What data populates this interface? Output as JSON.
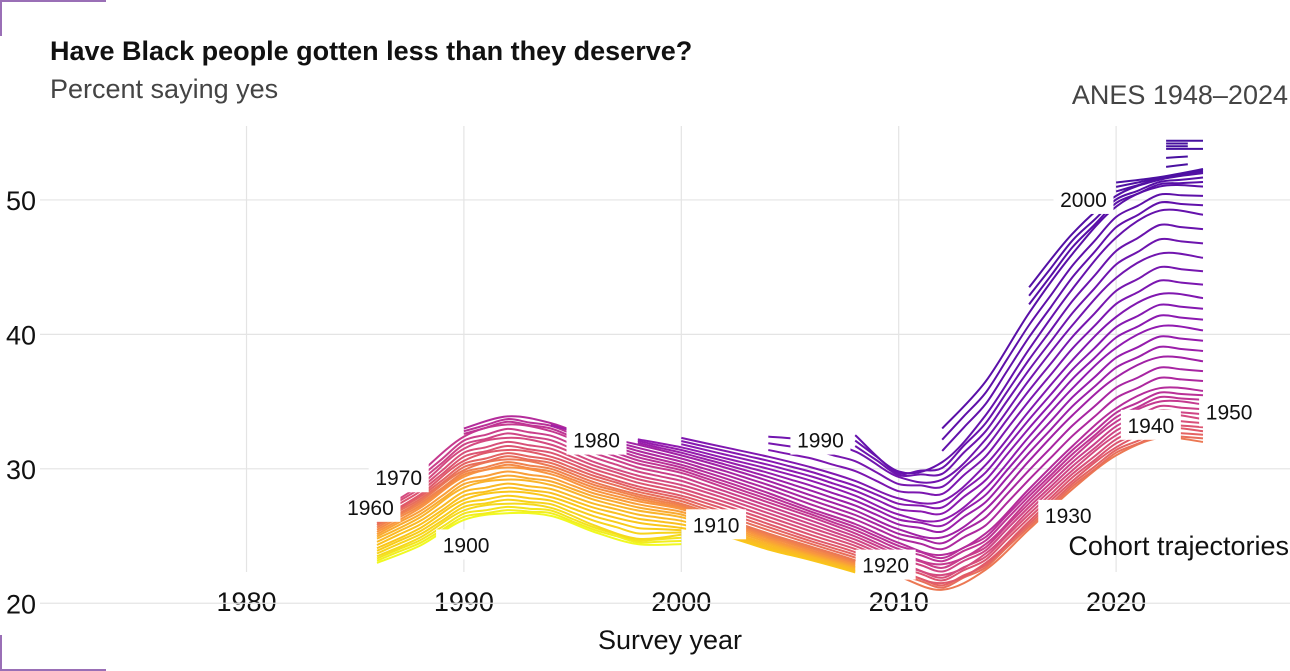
{
  "title": "Have Black people gotten less than they deserve?",
  "subtitle": "Percent saying yes",
  "source": "ANES 1948–2024",
  "chart_data": {
    "type": "line",
    "xlabel": "Survey year",
    "ylabel": "",
    "xlim": [
      1970.5,
      2028
    ],
    "ylim": [
      19.5,
      55.5
    ],
    "x_ticks": [
      1980,
      1990,
      2000,
      2010,
      2020
    ],
    "y_ticks": [
      20,
      30,
      40,
      50
    ],
    "grid": true,
    "legend_title": "Cohort trajectories",
    "cohort_labels": [
      {
        "label": "1900",
        "x": 1990.1,
        "y": 24.3
      },
      {
        "label": "1910",
        "x": 2001.6,
        "y": 25.8
      },
      {
        "label": "1920",
        "x": 2009.4,
        "y": 22.8
      },
      {
        "label": "1930",
        "x": 2017.8,
        "y": 26.5
      },
      {
        "label": "1940",
        "x": 2021.6,
        "y": 33.2
      },
      {
        "label": "1950",
        "x": 2025.2,
        "y": 34.2
      },
      {
        "label": "1960",
        "x": 1985.7,
        "y": 27.1
      },
      {
        "label": "1970",
        "x": 1987.0,
        "y": 29.3
      },
      {
        "label": "1980",
        "x": 1996.1,
        "y": 32.1
      },
      {
        "label": "1990",
        "x": 2006.4,
        "y": 32.1
      },
      {
        "label": "2000",
        "x": 2018.5,
        "y": 50.0
      }
    ],
    "series": [
      {
        "color": "#f0f921",
        "x": [
          1986.0,
          1988.0,
          1990.0,
          1992.0,
          1994.0,
          1996.0,
          1998.0,
          2000.0
        ],
        "y": [
          23.0,
          24.3,
          26.2,
          26.7,
          26.5,
          25.3,
          24.4,
          24.4
        ]
      },
      {
        "color": "#f5d91d",
        "x": [
          1986.0,
          1988.0,
          1990.0,
          1992.0,
          1994.0,
          1996.0,
          1998.0,
          2000.0
        ],
        "y": [
          23.5,
          24.9,
          26.9,
          27.4,
          27.1,
          25.8,
          24.8,
          25.1
        ]
      },
      {
        "color": "#fac61a",
        "x": [
          1986.0,
          1988.0,
          1990.0,
          1992.0,
          1994.0,
          1996.0,
          1998.0,
          2000.0,
          2002.0,
          2004.0,
          2006.0,
          2008.0
        ],
        "y": [
          24.1,
          25.6,
          27.7,
          28.3,
          27.9,
          26.8,
          26.0,
          25.6,
          25.0,
          24.0,
          23.2,
          22.3
        ]
      },
      {
        "color": "#fab42a",
        "x": [
          1986.0,
          1988.0,
          1990.0,
          1992.0,
          1994.0,
          1996.0,
          1998.0,
          2000.0,
          2002.0,
          2004.0,
          2006.0,
          2008.0
        ],
        "y": [
          24.8,
          26.4,
          28.6,
          29.2,
          28.8,
          27.7,
          26.9,
          26.4,
          25.4,
          24.4,
          23.5,
          22.6
        ]
      },
      {
        "color": "#f89540",
        "x": [
          1986.0,
          1988.0,
          1990.0,
          1992.0,
          1994.0,
          1996.0,
          1998.0,
          2000.0,
          2002.0,
          2004.0,
          2006.0,
          2008.0
        ],
        "y": [
          25.3,
          27.1,
          29.4,
          30.1,
          29.6,
          28.4,
          27.6,
          27.0,
          25.9,
          24.8,
          23.8,
          22.9
        ]
      },
      {
        "color": "#ec7853",
        "x": [
          1986.0,
          1988.0,
          1990.0,
          1992.0,
          1994.0,
          1996.0,
          1998.0,
          2000.0,
          2002.0,
          2004.0,
          2006.0,
          2008.0,
          2010.0,
          2012.0,
          2014.0,
          2016.0,
          2018.0,
          2020.0,
          2022.0,
          2024.0
        ],
        "y": [
          25.8,
          27.6,
          29.9,
          30.7,
          30.2,
          29.0,
          28.1,
          27.4,
          26.3,
          25.2,
          24.2,
          23.2,
          22.0,
          21.0,
          22.5,
          25.5,
          28.5,
          31.0,
          32.3,
          32.0
        ]
      },
      {
        "color": "#e0596a",
        "x": [
          1986.0,
          1988.0,
          1990.0,
          1992.0,
          1994.0,
          1996.0,
          1998.0,
          2000.0,
          2002.0,
          2004.0,
          2006.0,
          2008.0,
          2010.0,
          2012.0,
          2014.0,
          2016.0,
          2018.0,
          2020.0,
          2022.0,
          2024.0
        ],
        "y": [
          26.2,
          28.1,
          30.6,
          31.4,
          30.9,
          29.7,
          28.7,
          28.0,
          27.0,
          25.9,
          24.8,
          23.8,
          22.5,
          21.5,
          23.0,
          26.1,
          29.1,
          31.6,
          33.0,
          32.8
        ]
      },
      {
        "color": "#d44a80",
        "x": [
          1986.0,
          1988.0,
          1990.0,
          1992.0,
          1994.0,
          1996.0,
          1998.0,
          2000.0,
          2002.0,
          2004.0,
          2006.0,
          2008.0,
          2010.0,
          2012.0,
          2014.0,
          2016.0,
          2018.0,
          2020.0,
          2022.0,
          2024.0
        ],
        "y": [
          26.8,
          28.8,
          31.5,
          32.3,
          31.8,
          30.5,
          29.5,
          28.8,
          27.8,
          26.7,
          25.6,
          24.5,
          23.1,
          22.1,
          23.7,
          26.9,
          29.9,
          32.5,
          34.0,
          33.7
        ]
      },
      {
        "color": "#c53a8f",
        "x": [
          1988.0,
          1990.0,
          1992.0,
          1994.0,
          1996.0,
          1998.0,
          2000.0,
          2002.0,
          2004.0,
          2006.0,
          2008.0,
          2010.0,
          2012.0,
          2014.0,
          2016.0,
          2018.0,
          2020.0,
          2022.0,
          2024.0
        ],
        "y": [
          29.7,
          32.4,
          33.3,
          32.8,
          31.5,
          30.4,
          29.7,
          28.6,
          27.5,
          26.4,
          25.2,
          23.8,
          22.9,
          24.4,
          27.7,
          30.8,
          33.5,
          35.0,
          34.8
        ]
      },
      {
        "color": "#b42c9b",
        "x": [
          1990.0,
          1992.0,
          1994.0,
          1996.0,
          1998.0,
          2000.0,
          2002.0,
          2004.0,
          2006.0,
          2008.0,
          2010.0,
          2012.0,
          2014.0,
          2016.0,
          2018.0,
          2020.0,
          2022.0,
          2024.0
        ],
        "y": [
          33.0,
          33.9,
          33.4,
          32.2,
          31.1,
          30.3,
          29.3,
          28.2,
          27.0,
          25.9,
          24.5,
          23.6,
          25.2,
          28.5,
          31.7,
          34.5,
          36.0,
          35.8
        ]
      },
      {
        "color": "#a021a5",
        "x": [
          1994.0,
          1996.0,
          1998.0,
          2000.0,
          2002.0,
          2004.0,
          2006.0,
          2008.0,
          2010.0,
          2012.0,
          2014.0,
          2016.0,
          2018.0,
          2020.0,
          2022.0,
          2024.0
        ],
        "y": [
          33.2,
          32.5,
          31.8,
          31.0,
          30.1,
          29.1,
          28.0,
          26.9,
          25.5,
          24.9,
          27.0,
          30.6,
          34.0,
          36.8,
          38.3,
          38.0
        ]
      },
      {
        "color": "#901ab0",
        "x": [
          1998.0,
          2000.0,
          2002.0,
          2004.0,
          2006.0,
          2008.0,
          2010.0,
          2012.0,
          2014.0,
          2016.0,
          2018.0,
          2020.0,
          2022.0,
          2024.0
        ],
        "y": [
          32.2,
          31.6,
          30.8,
          30.0,
          29.1,
          28.0,
          26.6,
          26.2,
          28.6,
          32.4,
          36.0,
          39.0,
          40.6,
          40.3
        ]
      },
      {
        "color": "#8017b0",
        "x": [
          2000.0,
          2002.0,
          2004.0,
          2006.0,
          2008.0,
          2010.0,
          2012.0,
          2014.0,
          2016.0,
          2018.0,
          2020.0,
          2022.0,
          2024.0
        ],
        "y": [
          32.3,
          31.6,
          30.9,
          30.1,
          29.1,
          27.8,
          27.6,
          30.3,
          34.3,
          38.1,
          41.3,
          43.0,
          42.7
        ]
      },
      {
        "color": "#7115af",
        "x": [
          2004.0,
          2006.0,
          2008.0,
          2010.0,
          2012.0,
          2014.0,
          2016.0,
          2018.0,
          2020.0,
          2022.0,
          2024.0
        ],
        "y": [
          32.4,
          32.1,
          31.3,
          29.4,
          29.2,
          32.2,
          36.6,
          40.7,
          44.2,
          46.0,
          45.7
        ]
      },
      {
        "color": "#6512ac",
        "x": [
          2008.0,
          2010.0,
          2012.0,
          2014.0,
          2016.0,
          2018.0,
          2020.0,
          2022.0,
          2024.0
        ],
        "y": [
          32.5,
          29.8,
          30.5,
          34.0,
          38.9,
          43.4,
          47.2,
          49.2,
          48.9
        ]
      },
      {
        "color": "#5a0fa8",
        "x": [
          2012.0,
          2014.0,
          2016.0,
          2018.0,
          2020.0,
          2022.0,
          2024.0
        ],
        "y": [
          33.0,
          36.5,
          41.6,
          46.0,
          49.5,
          51.0,
          51.0
        ]
      },
      {
        "color": "#5310a5",
        "x": [
          2016.0,
          2018.0,
          2020.0,
          2022.0,
          2024.0
        ],
        "y": [
          43.5,
          47.5,
          50.3,
          51.5,
          52.0
        ]
      },
      {
        "color": "#4c10a2",
        "x": [
          2020.0,
          2022.0,
          2024.0
        ],
        "y": [
          51.3,
          51.7,
          52.3
        ]
      },
      {
        "color": "#46109f",
        "x": [
          2022.3,
          2024.0
        ],
        "y": [
          53.8,
          53.8
        ]
      },
      {
        "color": "#46109f",
        "x": [
          2022.3,
          2024.0
        ],
        "y": [
          54.4,
          54.4
        ]
      }
    ]
  }
}
